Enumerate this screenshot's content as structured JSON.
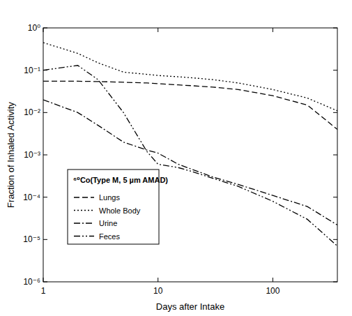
{
  "chart_data": {
    "type": "line",
    "title": "⁶⁰Co(Type M, 5 µm AMAD)",
    "x_label": "Days after Intake",
    "y_label": "Fraction of Inhaled Activity",
    "x": [
      1,
      2,
      3,
      5,
      8,
      10,
      15,
      20,
      30,
      50,
      100,
      200,
      365
    ],
    "series": [
      {
        "name": "Lungs",
        "color": "#000000",
        "line_style": "dashed",
        "values": [
          0.055,
          0.055,
          0.054,
          0.052,
          0.05,
          0.048,
          0.045,
          0.043,
          0.04,
          0.035,
          0.025,
          0.015,
          0.004
        ]
      },
      {
        "name": "Whole Body",
        "color": "#000000",
        "line_style": "dotted",
        "values": [
          0.45,
          0.25,
          0.15,
          0.09,
          0.08,
          0.075,
          0.07,
          0.066,
          0.06,
          0.05,
          0.035,
          0.022,
          0.011
        ]
      },
      {
        "name": "Urine",
        "color": "#000000",
        "line_style": "dashdot",
        "values": [
          0.02,
          0.01,
          0.005,
          0.002,
          0.0013,
          0.0011,
          0.0006,
          0.00045,
          0.0003,
          0.0002,
          0.00011,
          6e-05,
          2.2e-05
        ]
      },
      {
        "name": "Feces",
        "color": "#000000",
        "line_style": "dashdotdot",
        "values": [
          0.1,
          0.13,
          0.06,
          0.01,
          0.0012,
          0.0006,
          0.0005,
          0.0004,
          0.00028,
          0.00018,
          8e-05,
          3e-05,
          7e-06
        ]
      }
    ],
    "xlim": [
      1,
      365
    ],
    "ylim": [
      1e-06,
      1
    ],
    "xticks": [
      1,
      10,
      100
    ],
    "yticks": [
      {
        "value": 1e-06,
        "label": "10⁻⁶"
      },
      {
        "value": 1e-05,
        "label": "10⁻⁵"
      },
      {
        "value": 0.0001,
        "label": "10⁻⁴"
      },
      {
        "value": 0.001,
        "label": "10⁻³"
      },
      {
        "value": 0.01,
        "label": "10⁻²"
      },
      {
        "value": 0.1,
        "label": "10⁻¹"
      },
      {
        "value": 1,
        "label": "10⁰"
      }
    ],
    "log": true,
    "grid": false,
    "legend": "lower left"
  }
}
